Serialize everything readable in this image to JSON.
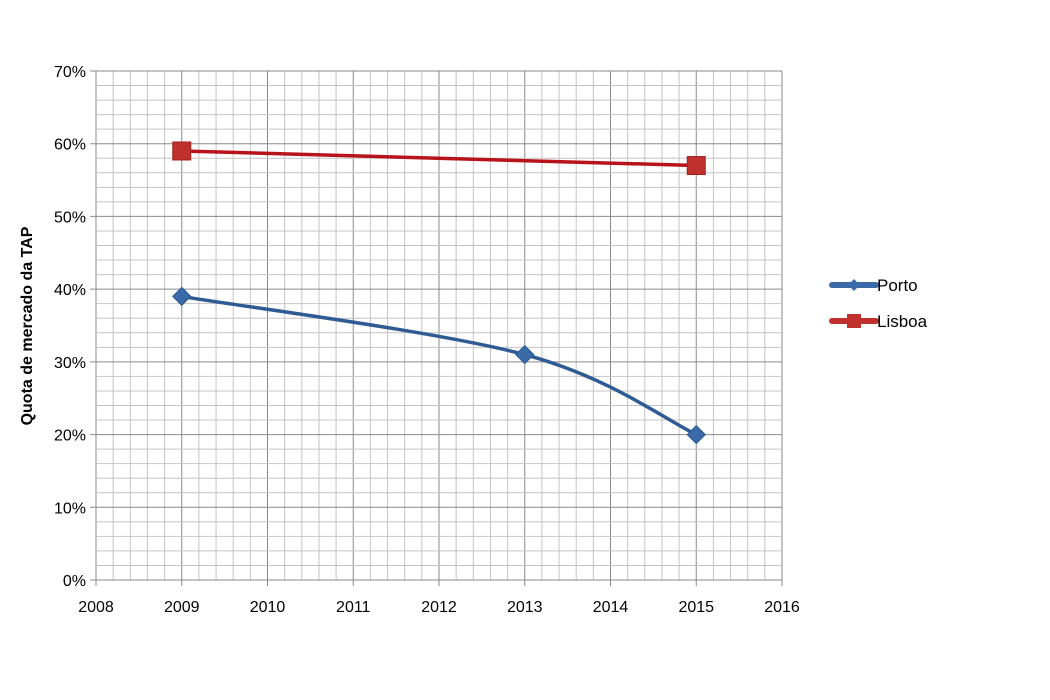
{
  "chart_data": {
    "type": "line",
    "title": "",
    "xlabel": "",
    "ylabel": "Quota de mercado da TAP",
    "xlim": [
      2008,
      2016
    ],
    "ylim": [
      0,
      70
    ],
    "x_ticks": [
      "2008",
      "2009",
      "2010",
      "2011",
      "2012",
      "2013",
      "2014",
      "2015",
      "2016"
    ],
    "y_ticks": [
      "0%",
      "10%",
      "20%",
      "30%",
      "40%",
      "50%",
      "60%",
      "70%"
    ],
    "grid": true,
    "legend_position": "right",
    "series": [
      {
        "name": "Porto",
        "color": "#3a6aa8",
        "marker": "diamond",
        "smooth": true,
        "x": [
          2009,
          2013,
          2015
        ],
        "y": [
          39,
          31,
          20
        ]
      },
      {
        "name": "Lisboa",
        "color": "#c0302c",
        "marker": "square",
        "smooth": false,
        "x": [
          2009,
          2015
        ],
        "y": [
          59,
          57
        ]
      }
    ]
  }
}
